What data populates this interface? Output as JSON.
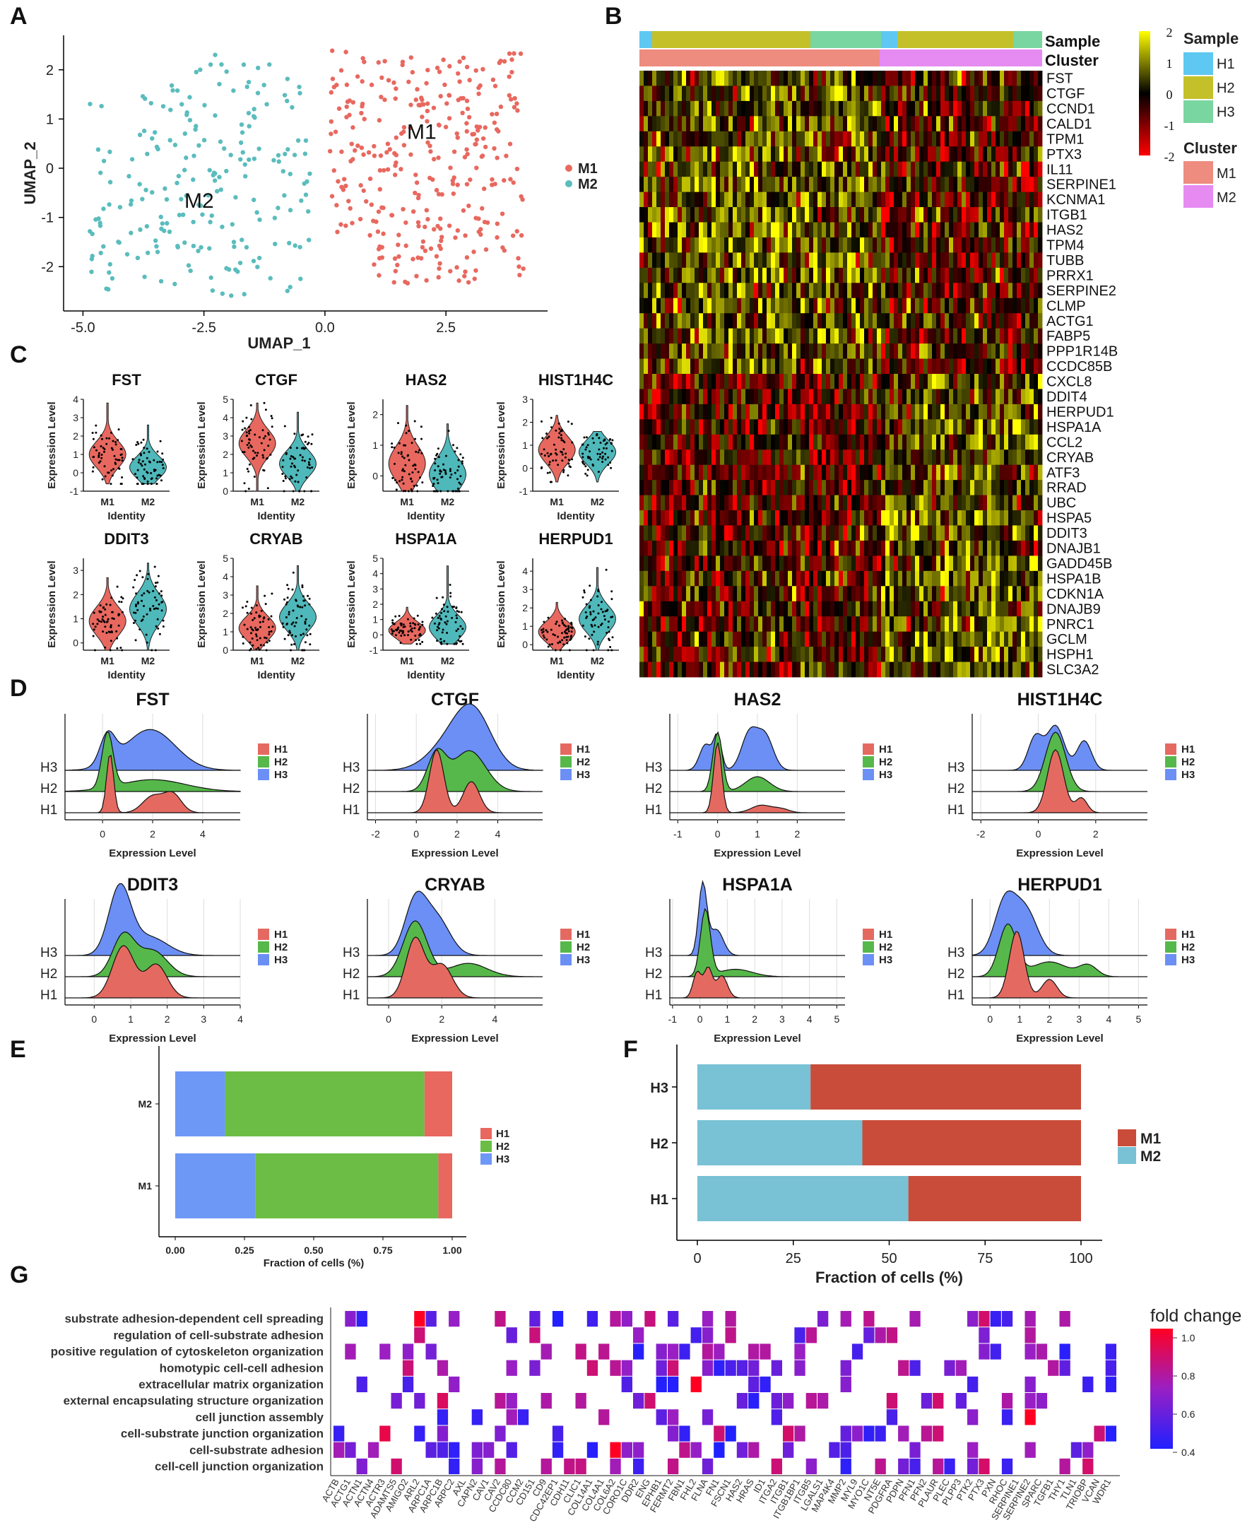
{
  "panels": {
    "A": {
      "letter": "A",
      "chart_data": {
        "type": "scatter",
        "xlabel": "UMAP_1",
        "ylabel": "UMAP_2",
        "xticks": [
          -5.0,
          -2.5,
          0.0,
          2.5
        ],
        "xtick_labels": [
          "-5.0",
          "-2.5",
          "0.0",
          "2.5"
        ],
        "yticks": [
          -2,
          -1,
          0,
          1,
          2
        ],
        "xlim": [
          -5.4,
          4.6
        ],
        "ylim": [
          -2.9,
          2.7
        ],
        "clusters": [
          {
            "name": "M1",
            "color": "#e8685f",
            "center": [
              2.0,
              0.1
            ],
            "label_pos": [
              2.0,
              0.6
            ]
          },
          {
            "name": "M2",
            "color": "#5bbcbd",
            "center": [
              -2.6,
              -0.3
            ],
            "label_pos": [
              -2.6,
              -0.8
            ]
          }
        ],
        "legend": [
          "M1",
          "M2"
        ]
      }
    },
    "B": {
      "letter": "B",
      "chart_data": {
        "type": "heatmap",
        "annotation_labels": [
          "Sample",
          "Cluster"
        ],
        "genes": [
          "FST",
          "CTGF",
          "CCND1",
          "CALD1",
          "TPM1",
          "PTX3",
          "IL11",
          "SERPINE1",
          "KCNMA1",
          "ITGB1",
          "HAS2",
          "TPM4",
          "TUBB",
          "PRRX1",
          "SERPINE2",
          "CLMP",
          "ACTG1",
          "FABP5",
          "PPP1R14B",
          "CCDC85B",
          "CXCL8",
          "DDIT4",
          "HERPUD1",
          "HSPA1A",
          "CCL2",
          "CRYAB",
          "ATF3",
          "RRAD",
          "UBC",
          "HSPA5",
          "DDIT3",
          "DNAJB1",
          "GADD45B",
          "HSPA1B",
          "CDKN1A",
          "DNAJB9",
          "PNRC1",
          "GCLM",
          "HSPH1",
          "SLC3A2"
        ],
        "color_scale": {
          "min": -2,
          "max": 2,
          "ticks": [
            "2",
            "1",
            "0",
            "-1",
            "-2"
          ],
          "low": "#ff0000",
          "mid": "#000000",
          "high": "#ffff00"
        },
        "sample_legend_title": "Sample",
        "sample_legend": [
          {
            "name": "H1",
            "color": "#5ec8f2"
          },
          {
            "name": "H2",
            "color": "#c4c02a"
          },
          {
            "name": "H3",
            "color": "#79d6a0"
          }
        ],
        "cluster_legend_title": "Cluster",
        "cluster_legend": [
          {
            "name": "M1",
            "color": "#ee8c80"
          },
          {
            "name": "M2",
            "color": "#e58bf2"
          }
        ]
      }
    },
    "C": {
      "letter": "C",
      "chart_data": {
        "type": "violin",
        "ylabel": "Expression Level",
        "xlabel": "Identity",
        "groups": [
          "M1",
          "M2"
        ],
        "plots": [
          {
            "gene": "FST",
            "yticks": [
              "-1",
              "0",
              "1",
              "2",
              "3",
              "4"
            ],
            "ymin": -1,
            "ymax": 4,
            "m1": {
              "mean": 1.0,
              "max": 3.8
            },
            "m2": {
              "mean": 0.3,
              "max": 2.6
            }
          },
          {
            "gene": "CTGF",
            "yticks": [
              "0",
              "1",
              "2",
              "3",
              "4",
              "5"
            ],
            "ymin": 0,
            "ymax": 5,
            "m1": {
              "mean": 2.6,
              "max": 4.8
            },
            "m2": {
              "mean": 1.5,
              "max": 4.3
            }
          },
          {
            "gene": "HAS2",
            "yticks": [
              "0",
              "1",
              "2"
            ],
            "ymin": -0.5,
            "ymax": 2.5,
            "m1": {
              "mean": 0.4,
              "max": 2.3
            },
            "m2": {
              "mean": 0.05,
              "max": 1.7
            }
          },
          {
            "gene": "HIST1H4C",
            "yticks": [
              "-1",
              "0",
              "1",
              "2",
              "3"
            ],
            "ymin": -1,
            "ymax": 3,
            "m1": {
              "mean": 0.8,
              "max": 2.3
            },
            "m2": {
              "mean": 0.7,
              "max": 1.6
            }
          },
          {
            "gene": "DDIT3",
            "yticks": [
              "0",
              "1",
              "2",
              "3"
            ],
            "ymin": -0.3,
            "ymax": 3.5,
            "m1": {
              "mean": 0.9,
              "max": 2.7
            },
            "m2": {
              "mean": 1.4,
              "max": 3.3
            }
          },
          {
            "gene": "CRYAB",
            "yticks": [
              "0",
              "1",
              "2",
              "3",
              "4",
              "5"
            ],
            "ymin": 0,
            "ymax": 5,
            "m1": {
              "mean": 1.2,
              "max": 3.5
            },
            "m2": {
              "mean": 1.8,
              "max": 4.6
            }
          },
          {
            "gene": "HSPA1A",
            "yticks": [
              "-1",
              "0",
              "1",
              "2",
              "3",
              "4",
              "5"
            ],
            "ymin": -1,
            "ymax": 5,
            "m1": {
              "mean": 0.3,
              "max": 1.8
            },
            "m2": {
              "mean": 0.5,
              "max": 4.5
            }
          },
          {
            "gene": "HERPUD1",
            "yticks": [
              "0",
              "1",
              "2",
              "3",
              "4"
            ],
            "ymin": -0.3,
            "ymax": 4.7,
            "m1": {
              "mean": 0.7,
              "max": 2.3
            },
            "m2": {
              "mean": 1.4,
              "max": 4.2
            }
          }
        ]
      }
    },
    "D": {
      "letter": "D",
      "chart_data": {
        "type": "ridgeline",
        "xlabel": "Expression Level",
        "rows": [
          "H3",
          "H2",
          "H1"
        ],
        "legend": [
          {
            "name": "H1",
            "color": "#e46a61"
          },
          {
            "name": "H2",
            "color": "#56b84a"
          },
          {
            "name": "H3",
            "color": "#6b8ff5"
          }
        ],
        "plots": [
          {
            "gene": "FST",
            "xticks": [
              "0",
              "2",
              "4"
            ],
            "xt": [
              0,
              2,
              4
            ],
            "xlim": [
              -1.5,
              5.5
            ],
            "h1": [
              [
                0.3,
                0.14,
                0.8
              ],
              [
                2.0,
                0.4,
                0.22
              ],
              [
                2.8,
                0.35,
                0.25
              ]
            ],
            "h2": [
              [
                0.2,
                0.22,
                0.75
              ],
              [
                2.0,
                1.3,
                0.16
              ]
            ],
            "h3": [
              [
                0.2,
                0.3,
                0.4
              ],
              [
                1.9,
                1.0,
                0.55
              ]
            ]
          },
          {
            "gene": "CTGF",
            "xticks": [
              "-2",
              "0",
              "2",
              "4"
            ],
            "xt": [
              -2,
              0,
              2,
              4
            ],
            "xlim": [
              -2.4,
              6.2
            ],
            "h1": [
              [
                1.0,
                0.35,
                0.85
              ],
              [
                2.7,
                0.4,
                0.42
              ]
            ],
            "h2": [
              [
                1.0,
                0.45,
                0.5
              ],
              [
                2.6,
                0.8,
                0.55
              ]
            ],
            "h3": [
              [
                1.5,
                1.0,
                0.3
              ],
              [
                2.8,
                0.9,
                0.75
              ]
            ]
          },
          {
            "gene": "HAS2",
            "xticks": [
              "-1",
              "0",
              "1",
              "2"
            ],
            "xt": [
              -1,
              0,
              1,
              2
            ],
            "xlim": [
              -1.2,
              3.2
            ],
            "h1": [
              [
                0.0,
                0.1,
                0.95
              ],
              [
                1.1,
                0.25,
                0.1
              ],
              [
                1.6,
                0.2,
                0.05
              ]
            ],
            "h2": [
              [
                0.0,
                0.12,
                0.8
              ],
              [
                1.0,
                0.3,
                0.2
              ]
            ],
            "h3": [
              [
                -0.3,
                0.15,
                0.35
              ],
              [
                0.0,
                0.1,
                0.45
              ],
              [
                0.8,
                0.2,
                0.5
              ],
              [
                1.2,
                0.2,
                0.45
              ]
            ]
          },
          {
            "gene": "HIST1H4C",
            "xticks": [
              "-2",
              "0",
              "2"
            ],
            "xt": [
              -2,
              0,
              2
            ],
            "xlim": [
              -2.3,
              3.8
            ],
            "h1": [
              [
                0.6,
                0.28,
                0.85
              ],
              [
                1.5,
                0.2,
                0.2
              ]
            ],
            "h2": [
              [
                0.6,
                0.35,
                0.8
              ]
            ],
            "h3": [
              [
                -0.1,
                0.25,
                0.45
              ],
              [
                0.6,
                0.3,
                0.6
              ],
              [
                1.6,
                0.25,
                0.4
              ]
            ]
          },
          {
            "gene": "DDIT3",
            "xticks": [
              "0",
              "1",
              "2",
              "3",
              "4"
            ],
            "xt": [
              0,
              1,
              2,
              3,
              4
            ],
            "xlim": [
              -0.8,
              4.0
            ],
            "h1": [
              [
                0.8,
                0.3,
                0.7
              ],
              [
                1.7,
                0.3,
                0.45
              ]
            ],
            "h2": [
              [
                0.8,
                0.3,
                0.55
              ],
              [
                1.6,
                0.4,
                0.35
              ]
            ],
            "h3": [
              [
                0.7,
                0.3,
                0.9
              ],
              [
                1.5,
                0.5,
                0.25
              ]
            ]
          },
          {
            "gene": "CRYAB",
            "xticks": [
              "0",
              "2",
              "4"
            ],
            "xt": [
              0,
              2,
              4
            ],
            "xlim": [
              -0.8,
              5.8
            ],
            "h1": [
              [
                1.0,
                0.35,
                0.8
              ],
              [
                2.0,
                0.4,
                0.45
              ]
            ],
            "h2": [
              [
                1.0,
                0.45,
                0.75
              ],
              [
                3.0,
                0.7,
                0.18
              ]
            ],
            "h3": [
              [
                1.0,
                0.4,
                0.7
              ],
              [
                1.8,
                0.5,
                0.5
              ]
            ]
          },
          {
            "gene": "HSPA1A",
            "xticks": [
              "-1",
              "0",
              "1",
              "2",
              "3",
              "4",
              "5"
            ],
            "xt": [
              -1,
              0,
              1,
              2,
              3,
              4,
              5
            ],
            "xlim": [
              -1.1,
              5.3
            ],
            "h1": [
              [
                -0.1,
                0.15,
                0.35
              ],
              [
                0.3,
                0.15,
                0.4
              ],
              [
                0.8,
                0.2,
                0.3
              ]
            ],
            "h2": [
              [
                0.2,
                0.18,
                0.9
              ],
              [
                1.3,
                0.6,
                0.1
              ]
            ],
            "h3": [
              [
                0.1,
                0.15,
                0.95
              ],
              [
                0.6,
                0.25,
                0.35
              ]
            ]
          },
          {
            "gene": "HERPUD1",
            "xticks": [
              "0",
              "1",
              "2",
              "3",
              "4",
              "5"
            ],
            "xt": [
              0,
              1,
              2,
              3,
              4,
              5
            ],
            "xlim": [
              -0.6,
              5.3
            ],
            "h1": [
              [
                0.9,
                0.25,
                0.9
              ],
              [
                2.0,
                0.25,
                0.25
              ]
            ],
            "h2": [
              [
                0.6,
                0.3,
                0.7
              ],
              [
                2.0,
                0.6,
                0.2
              ],
              [
                3.3,
                0.3,
                0.15
              ]
            ],
            "h3": [
              [
                0.5,
                0.35,
                0.7
              ],
              [
                1.2,
                0.4,
                0.6
              ]
            ]
          }
        ]
      }
    },
    "E": {
      "letter": "E",
      "chart_data": {
        "type": "bar",
        "orientation": "horizontal",
        "stacked": true,
        "xlabel": "Fraction of cells (%)",
        "xticks": [
          "0.00",
          "0.25",
          "0.50",
          "0.75",
          "1.00"
        ],
        "categories": [
          "M2",
          "M1"
        ],
        "series": [
          {
            "name": "H3",
            "color": "#6d98f5",
            "values": [
              0.18,
              0.29
            ]
          },
          {
            "name": "H2",
            "color": "#6cbd45",
            "values": [
              0.72,
              0.66
            ]
          },
          {
            "name": "H1",
            "color": "#e8675f",
            "values": [
              0.1,
              0.05
            ]
          }
        ],
        "legend": [
          "H1",
          "H2",
          "H3"
        ]
      }
    },
    "F": {
      "letter": "F",
      "chart_data": {
        "type": "bar",
        "orientation": "horizontal",
        "stacked": true,
        "xlabel": "Fraction of cells (%)",
        "xticks": [
          "0",
          "25",
          "50",
          "75",
          "100"
        ],
        "categories": [
          "H3",
          "H2",
          "H1"
        ],
        "series": [
          {
            "name": "M2",
            "color": "#79c1d4",
            "values": [
              29.5,
              43,
              55
            ]
          },
          {
            "name": "M1",
            "color": "#c94c3a",
            "values": [
              70.5,
              57,
              45
            ]
          }
        ],
        "legend": [
          "M1",
          "M2"
        ]
      }
    },
    "G": {
      "letter": "G",
      "chart_data": {
        "type": "heatmap",
        "legend_title": "fold change",
        "legend_ticks": [
          "1.0",
          "0.8",
          "0.6",
          "0.4"
        ],
        "terms": [
          "substrate adhesion-dependent cell spreading",
          "regulation of cell-substrate adhesion",
          "positive regulation of cytoskeleton organization",
          "homotypic cell-cell adhesion",
          "extracellular matrix organization",
          "external encapsulating structure organization",
          "cell junction assembly",
          "cell-substrate junction organization",
          "cell-substrate adhesion",
          "cell-cell junction organization"
        ],
        "genes": [
          "ACTB",
          "ACTG1",
          "ACTN1",
          "ACTN4",
          "ACTR3",
          "ADAMTS5",
          "AMIGO2",
          "ARL2",
          "ARPC1A",
          "ARPC1B",
          "ARPC2",
          "AXL",
          "CAPN2",
          "CAV1",
          "CAV2",
          "CCDC80",
          "CCM2",
          "CD151",
          "CD9",
          "CDC42EP1",
          "CDH11",
          "CLIC1",
          "COL14A1",
          "COL4A1",
          "COL6A2",
          "CORO1C",
          "DDR2",
          "ENG",
          "EPHB1",
          "FERMT2",
          "FBN1",
          "FHL2",
          "FLNA",
          "FN1",
          "FSCN1",
          "HAS2",
          "HRAS",
          "ID1",
          "ITGA2",
          "ITGB1",
          "ITGB1BP1",
          "ITGB5",
          "LGALS1",
          "MAP4K4",
          "MMP2",
          "MYL9",
          "MYO1C",
          "NT5E",
          "PDGFRA",
          "PDPN",
          "PFN1",
          "PFN2",
          "PLAUR",
          "PLEC",
          "PLPP3",
          "PTK2",
          "PTX3",
          "PXN",
          "RHOC",
          "SERPINE1",
          "SERPINE2",
          "SPARC",
          "TGFB1",
          "THY1",
          "TLN1",
          "TRIOBP",
          "VCAN",
          "WDR1"
        ]
      }
    }
  }
}
